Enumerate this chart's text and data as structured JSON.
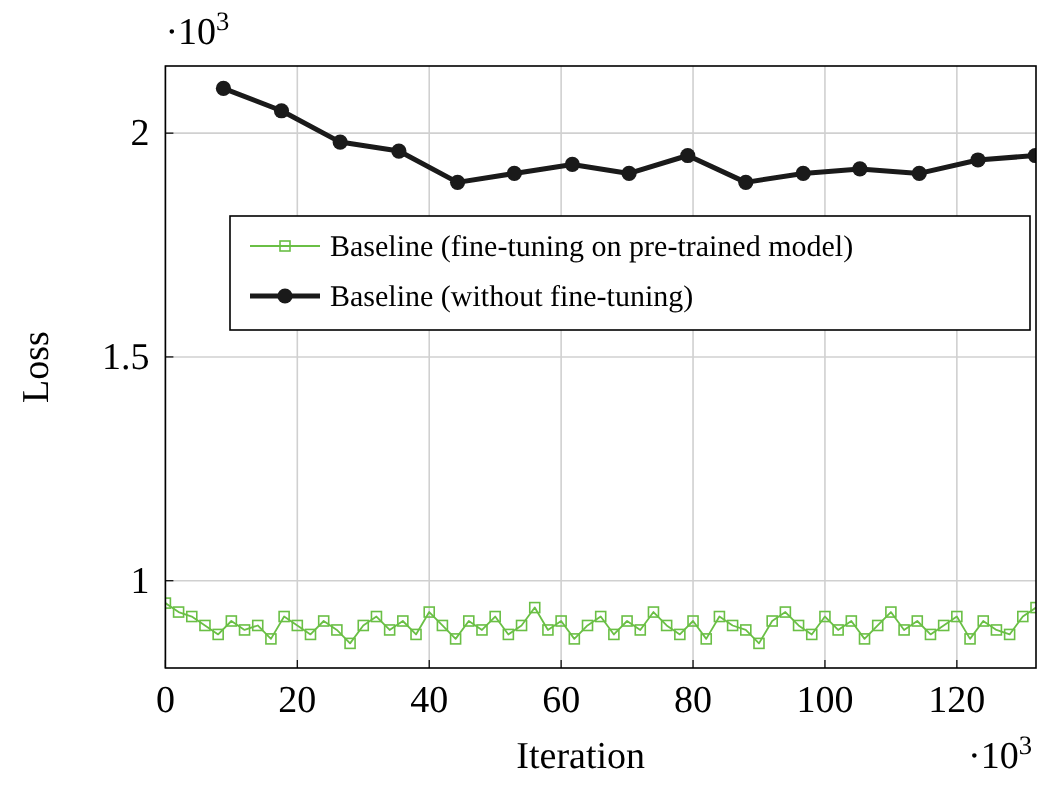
{
  "chart_data": {
    "type": "line",
    "xlabel": "Iteration",
    "ylabel": "Loss",
    "xlim": [
      0,
      132
    ],
    "ylim": [
      0.805,
      2.15
    ],
    "xticks": [
      0,
      20,
      40,
      60,
      80,
      100,
      120
    ],
    "yticks": [
      1,
      1.5,
      2
    ],
    "grid": true,
    "legend": "top",
    "annotations": [
      "·10$^{3}$",
      "·10$^{3}$"
    ],
    "series": [
      {
        "name": "Baseline (fine-tuning on pre-trained model)",
        "color": "#6abf45",
        "marker": "square",
        "x": [
          0,
          2,
          4,
          6,
          8,
          10,
          12,
          14,
          16,
          18,
          20,
          22,
          24,
          26,
          28,
          30,
          32,
          34,
          36,
          38,
          40,
          42,
          44,
          46,
          48,
          50,
          52,
          54,
          56,
          58,
          60,
          62,
          64,
          66,
          68,
          70,
          72,
          74,
          76,
          78,
          80,
          82,
          84,
          86,
          88,
          90,
          92,
          94,
          96,
          98,
          100,
          102,
          104,
          106,
          108,
          110,
          112,
          114,
          116,
          118,
          120,
          122,
          124,
          126,
          128,
          130,
          132
        ],
        "values": [
          0.95,
          0.93,
          0.92,
          0.9,
          0.88,
          0.91,
          0.89,
          0.9,
          0.87,
          0.92,
          0.9,
          0.88,
          0.91,
          0.89,
          0.86,
          0.9,
          0.92,
          0.89,
          0.91,
          0.88,
          0.93,
          0.9,
          0.87,
          0.91,
          0.89,
          0.92,
          0.88,
          0.9,
          0.94,
          0.89,
          0.91,
          0.87,
          0.9,
          0.92,
          0.88,
          0.91,
          0.89,
          0.93,
          0.9,
          0.88,
          0.91,
          0.87,
          0.92,
          0.9,
          0.89,
          0.86,
          0.91,
          0.93,
          0.9,
          0.88,
          0.92,
          0.89,
          0.91,
          0.87,
          0.9,
          0.93,
          0.89,
          0.91,
          0.88,
          0.9,
          0.92,
          0.87,
          0.91,
          0.89,
          0.88,
          0.92,
          0.94
        ]
      },
      {
        "name": "Baseline (without fine-tuning)",
        "color": "#1a1a1a",
        "marker": "circle",
        "x": [
          8.8,
          17.6,
          26.5,
          35.4,
          44.3,
          52.9,
          61.7,
          70.3,
          79.2,
          88.0,
          96.7,
          105.3,
          114.3,
          123.2,
          131.9
        ],
        "values": [
          2.1,
          2.05,
          1.98,
          1.96,
          1.89,
          1.91,
          1.93,
          1.91,
          1.95,
          1.89,
          1.91,
          1.92,
          1.91,
          1.94,
          1.95
        ]
      }
    ]
  }
}
